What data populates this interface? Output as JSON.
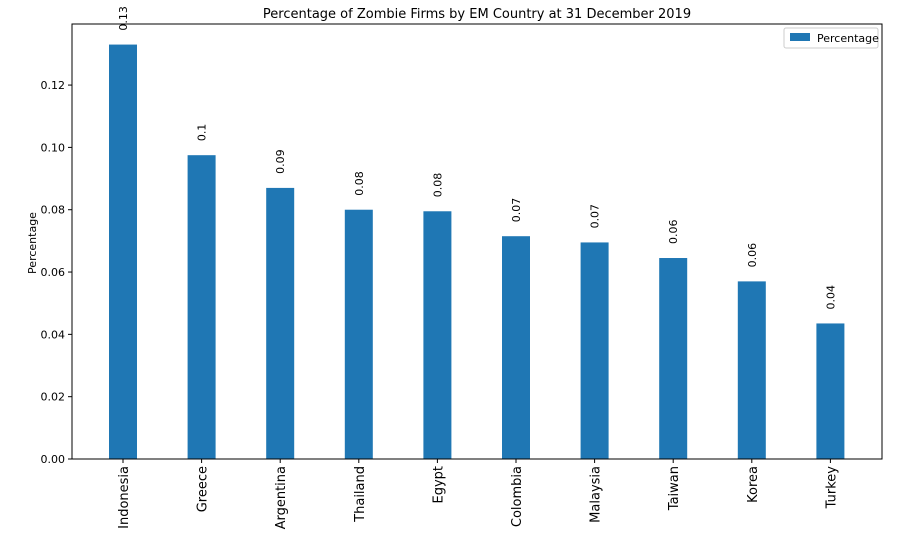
{
  "chart_data": {
    "type": "bar",
    "title": "Percentage of Zombie Firms by EM Country at 31 December 2019",
    "xlabel": "",
    "ylabel": "Percentage",
    "categories": [
      "Indonesia",
      "Greece",
      "Argentina",
      "Thailand",
      "Egypt",
      "Colombia",
      "Malaysia",
      "Taiwan",
      "Korea",
      "Turkey"
    ],
    "values": [
      0.133,
      0.0975,
      0.087,
      0.08,
      0.0795,
      0.0715,
      0.0695,
      0.0645,
      0.057,
      0.0435
    ],
    "data_labels": [
      "0.13",
      "0.1",
      "0.09",
      "0.08",
      "0.08",
      "0.07",
      "0.07",
      "0.06",
      "0.06",
      "0.04"
    ],
    "yticks": [
      "0.00",
      "0.02",
      "0.04",
      "0.06",
      "0.08",
      "0.10",
      "0.12"
    ],
    "ytick_values": [
      0,
      0.02,
      0.04,
      0.06,
      0.08,
      0.1,
      0.12
    ],
    "ylim": [
      0,
      0.1396
    ],
    "grid": false,
    "legend": {
      "label": "Percentage",
      "position": "top-right"
    },
    "color": "#1f77b4"
  }
}
